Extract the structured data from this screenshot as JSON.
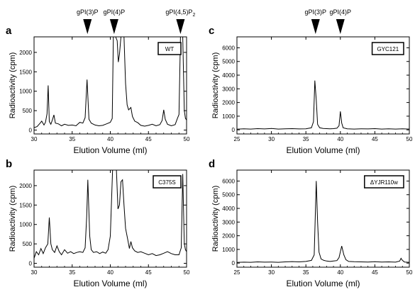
{
  "chart_data": [
    {
      "panel": "a",
      "type": "line",
      "strain": "WT",
      "xlabel": "Elution Volume (ml)",
      "ylabel": "Radioactivity (cpm)",
      "xlim": [
        30,
        50
      ],
      "ylim": [
        -100,
        2400
      ],
      "xticks": [
        30,
        35,
        40,
        45,
        50
      ],
      "yticks": [
        0,
        500,
        1000,
        1500,
        2000
      ],
      "markers": [
        {
          "label": "gPI(3)P",
          "sub": "",
          "x": 37
        },
        {
          "label": "gPI(4)P",
          "sub": "",
          "x": 40.5
        },
        {
          "label": "gPI(4,5)P",
          "sub": "2",
          "x": 49.2
        }
      ],
      "series": [
        {
          "points": [
            [
              30.0,
              60
            ],
            [
              30.4,
              90
            ],
            [
              30.8,
              180
            ],
            [
              31.0,
              230
            ],
            [
              31.3,
              130
            ],
            [
              31.5,
              200
            ],
            [
              31.7,
              420
            ],
            [
              31.85,
              1150
            ],
            [
              32.0,
              220
            ],
            [
              32.2,
              150
            ],
            [
              32.4,
              260
            ],
            [
              32.6,
              390
            ],
            [
              32.8,
              180
            ],
            [
              33.2,
              160
            ],
            [
              33.6,
              110
            ],
            [
              34.0,
              150
            ],
            [
              34.5,
              120
            ],
            [
              35.0,
              130
            ],
            [
              35.5,
              110
            ],
            [
              36.0,
              200
            ],
            [
              36.4,
              180
            ],
            [
              36.7,
              320
            ],
            [
              36.95,
              1300
            ],
            [
              37.2,
              280
            ],
            [
              37.5,
              180
            ],
            [
              38.0,
              130
            ],
            [
              38.5,
              110
            ],
            [
              39.0,
              120
            ],
            [
              39.5,
              160
            ],
            [
              40.0,
              200
            ],
            [
              40.25,
              300
            ],
            [
              40.4,
              2400
            ],
            [
              40.7,
              2400
            ],
            [
              40.9,
              2300
            ],
            [
              41.05,
              1750
            ],
            [
              41.2,
              1950
            ],
            [
              41.4,
              2400
            ],
            [
              41.8,
              2400
            ],
            [
              42.0,
              1200
            ],
            [
              42.2,
              650
            ],
            [
              42.4,
              520
            ],
            [
              42.7,
              580
            ],
            [
              42.9,
              350
            ],
            [
              43.2,
              230
            ],
            [
              43.6,
              190
            ],
            [
              44.0,
              120
            ],
            [
              44.5,
              100
            ],
            [
              45.0,
              120
            ],
            [
              45.5,
              150
            ],
            [
              46.0,
              110
            ],
            [
              46.5,
              140
            ],
            [
              46.8,
              250
            ],
            [
              47.0,
              520
            ],
            [
              47.2,
              280
            ],
            [
              47.5,
              150
            ],
            [
              48.0,
              110
            ],
            [
              48.5,
              140
            ],
            [
              48.8,
              300
            ],
            [
              49.0,
              400
            ],
            [
              49.2,
              2400
            ],
            [
              49.5,
              2400
            ],
            [
              49.7,
              500
            ],
            [
              49.85,
              300
            ],
            [
              50.0,
              260
            ]
          ]
        }
      ]
    },
    {
      "panel": "b",
      "type": "line",
      "strain": "C375S",
      "xlabel": "Elution Volume (ml)",
      "ylabel": "Radioactivity (cpm)",
      "xlim": [
        30,
        50
      ],
      "ylim": [
        -100,
        2400
      ],
      "xticks": [
        30,
        35,
        40,
        45,
        50
      ],
      "yticks": [
        0,
        500,
        1000,
        1500,
        2000
      ],
      "series": [
        {
          "points": [
            [
              30.0,
              130
            ],
            [
              30.3,
              300
            ],
            [
              30.6,
              220
            ],
            [
              30.9,
              380
            ],
            [
              31.2,
              250
            ],
            [
              31.5,
              400
            ],
            [
              31.8,
              500
            ],
            [
              32.0,
              1180
            ],
            [
              32.2,
              500
            ],
            [
              32.4,
              350
            ],
            [
              32.7,
              280
            ],
            [
              33.0,
              450
            ],
            [
              33.3,
              300
            ],
            [
              33.6,
              220
            ],
            [
              34.0,
              350
            ],
            [
              34.4,
              260
            ],
            [
              34.8,
              300
            ],
            [
              35.2,
              250
            ],
            [
              35.6,
              280
            ],
            [
              36.0,
              300
            ],
            [
              36.4,
              280
            ],
            [
              36.7,
              400
            ],
            [
              36.9,
              1200
            ],
            [
              37.05,
              2150
            ],
            [
              37.3,
              700
            ],
            [
              37.5,
              350
            ],
            [
              37.8,
              280
            ],
            [
              38.2,
              300
            ],
            [
              38.6,
              250
            ],
            [
              39.0,
              290
            ],
            [
              39.4,
              260
            ],
            [
              39.7,
              350
            ],
            [
              40.0,
              700
            ],
            [
              40.3,
              2400
            ],
            [
              40.8,
              2400
            ],
            [
              41.0,
              1400
            ],
            [
              41.2,
              1500
            ],
            [
              41.4,
              2100
            ],
            [
              41.6,
              2150
            ],
            [
              41.8,
              1500
            ],
            [
              42.0,
              900
            ],
            [
              42.3,
              600
            ],
            [
              42.5,
              380
            ],
            [
              42.7,
              560
            ],
            [
              42.9,
              400
            ],
            [
              43.2,
              320
            ],
            [
              43.6,
              280
            ],
            [
              44.0,
              300
            ],
            [
              44.5,
              260
            ],
            [
              45.0,
              220
            ],
            [
              45.5,
              250
            ],
            [
              46.0,
              200
            ],
            [
              46.5,
              220
            ],
            [
              47.0,
              260
            ],
            [
              47.5,
              300
            ],
            [
              48.0,
              250
            ],
            [
              48.5,
              220
            ],
            [
              49.0,
              220
            ],
            [
              49.3,
              400
            ],
            [
              49.5,
              2300
            ],
            [
              49.7,
              500
            ],
            [
              49.85,
              350
            ],
            [
              50.0,
              300
            ]
          ]
        }
      ]
    },
    {
      "panel": "c",
      "type": "line",
      "strain": "GYC121",
      "xlabel": "Elution Volume (ml)",
      "ylabel": "Radioactivity (cpm)",
      "xlim": [
        25,
        50
      ],
      "ylim": [
        -300,
        6800
      ],
      "xticks": [
        25,
        30,
        35,
        40,
        45,
        50
      ],
      "yticks": [
        0,
        1000,
        2000,
        3000,
        4000,
        5000,
        6000
      ],
      "markers": [
        {
          "label": "gPI(3)P",
          "sub": "",
          "x": 36.4
        },
        {
          "label": "gPI(4)P",
          "sub": "",
          "x": 40.0
        }
      ],
      "series": [
        {
          "points": [
            [
              25.0,
              50
            ],
            [
              26.0,
              80
            ],
            [
              27.0,
              60
            ],
            [
              28.0,
              90
            ],
            [
              29.0,
              70
            ],
            [
              30.0,
              100
            ],
            [
              31.0,
              60
            ],
            [
              32.0,
              80
            ],
            [
              33.0,
              90
            ],
            [
              34.0,
              70
            ],
            [
              35.0,
              80
            ],
            [
              35.8,
              150
            ],
            [
              36.1,
              600
            ],
            [
              36.3,
              3600
            ],
            [
              36.5,
              2200
            ],
            [
              36.7,
              400
            ],
            [
              37.0,
              150
            ],
            [
              37.5,
              100
            ],
            [
              38.0,
              90
            ],
            [
              38.5,
              80
            ],
            [
              39.0,
              90
            ],
            [
              39.5,
              120
            ],
            [
              39.8,
              300
            ],
            [
              40.0,
              1350
            ],
            [
              40.2,
              500
            ],
            [
              40.4,
              150
            ],
            [
              41.0,
              80
            ],
            [
              42.0,
              60
            ],
            [
              43.0,
              80
            ],
            [
              44.0,
              70
            ],
            [
              45.0,
              90
            ],
            [
              46.0,
              60
            ],
            [
              47.0,
              80
            ],
            [
              48.0,
              60
            ],
            [
              49.0,
              80
            ],
            [
              50.0,
              60
            ]
          ]
        }
      ]
    },
    {
      "panel": "d",
      "type": "line",
      "strain": "ΔYJR110w",
      "xlabel": "Elution Volume (ml)",
      "ylabel": "Radioactivity (cpm)",
      "xlim": [
        25,
        50
      ],
      "ylim": [
        -300,
        6800
      ],
      "xticks": [
        25,
        30,
        35,
        40,
        45,
        50
      ],
      "yticks": [
        0,
        1000,
        2000,
        3000,
        4000,
        5000,
        6000
      ],
      "series": [
        {
          "points": [
            [
              25.0,
              50
            ],
            [
              26.0,
              70
            ],
            [
              27.0,
              60
            ],
            [
              28.0,
              90
            ],
            [
              29.0,
              70
            ],
            [
              30.0,
              80
            ],
            [
              31.0,
              60
            ],
            [
              32.0,
              90
            ],
            [
              33.0,
              110
            ],
            [
              34.0,
              90
            ],
            [
              35.0,
              120
            ],
            [
              35.8,
              200
            ],
            [
              36.2,
              600
            ],
            [
              36.5,
              6000
            ],
            [
              36.7,
              3000
            ],
            [
              36.9,
              800
            ],
            [
              37.2,
              300
            ],
            [
              37.6,
              200
            ],
            [
              38.0,
              150
            ],
            [
              38.5,
              120
            ],
            [
              39.0,
              150
            ],
            [
              39.5,
              180
            ],
            [
              39.8,
              400
            ],
            [
              40.2,
              1250
            ],
            [
              40.5,
              600
            ],
            [
              40.8,
              250
            ],
            [
              41.2,
              120
            ],
            [
              42.0,
              100
            ],
            [
              43.0,
              90
            ],
            [
              44.0,
              80
            ],
            [
              45.0,
              100
            ],
            [
              46.0,
              80
            ],
            [
              47.0,
              90
            ],
            [
              48.0,
              70
            ],
            [
              48.6,
              150
            ],
            [
              48.8,
              350
            ],
            [
              49.0,
              200
            ],
            [
              49.3,
              80
            ],
            [
              50.0,
              60
            ]
          ]
        }
      ]
    }
  ]
}
